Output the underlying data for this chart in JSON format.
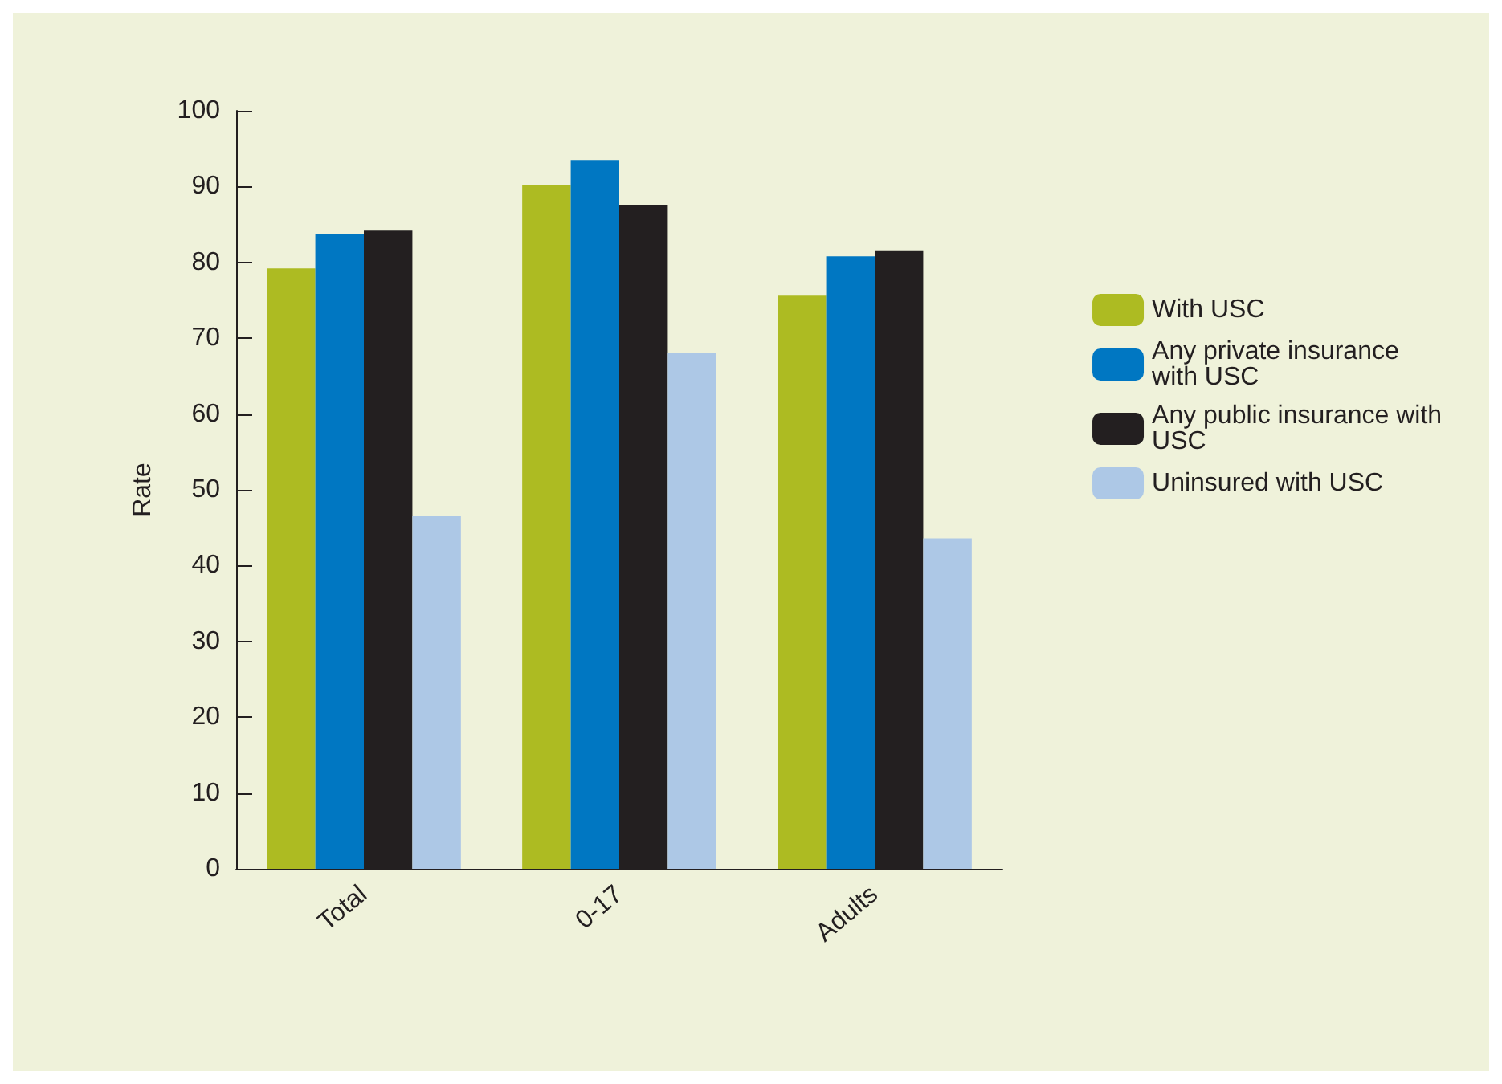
{
  "chart_data": {
    "type": "bar",
    "ylabel": "Rate",
    "categories": [
      "Total",
      "0-17",
      "Adults"
    ],
    "series": [
      {
        "name": "With USC",
        "color": "#adbb22",
        "values": [
          79.2,
          90.2,
          75.6
        ]
      },
      {
        "name": "Any private insurance with USC",
        "color": "#0077c2",
        "values": [
          83.8,
          93.5,
          80.8
        ]
      },
      {
        "name": "Any public insurance with USC",
        "color": "#231f20",
        "values": [
          84.2,
          87.6,
          81.6
        ]
      },
      {
        "name": "Uninsured with USC",
        "color": "#adc8e6",
        "values": [
          46.5,
          68,
          43.6
        ]
      }
    ],
    "ylim": [
      0,
      100
    ],
    "yticks": [
      0,
      10,
      20,
      30,
      40,
      50,
      60,
      70,
      80,
      90,
      100
    ],
    "grid": false,
    "legend": "right"
  }
}
